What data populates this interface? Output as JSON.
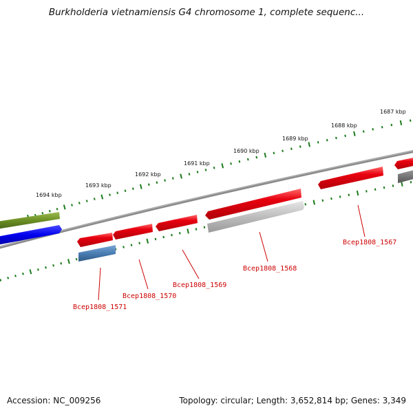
{
  "title": "Burkholderia vietnamiensis G4 chromosome 1, complete sequenc...",
  "footer": {
    "accession": "Accession: NC_009256",
    "summary": "Topology: circular; Length: 3,652,814 bp; Genes: 3,349"
  },
  "scale_labels": [
    "1687 kbp",
    "1688 kbp",
    "1689 kbp",
    "1690 kbp",
    "1691 kbp",
    "1692 kbp",
    "1693 kbp",
    "1694 kbp"
  ],
  "gene_labels": [
    "Bcep1808_1567",
    "Bcep1808_1568",
    "Bcep1808_1569",
    "Bcep1808_1570",
    "Bcep1808_1571"
  ],
  "colors": {
    "forward_gene": "#e8000f",
    "reverse_gene": "#4a7db3",
    "pseudo_gene": "#bdbdbd",
    "olive_gene": "#6b8e23",
    "blue_gene": "#0000ee",
    "backbone": "#808080",
    "ticks": "#1a7a1a",
    "label": "#cc0000"
  }
}
